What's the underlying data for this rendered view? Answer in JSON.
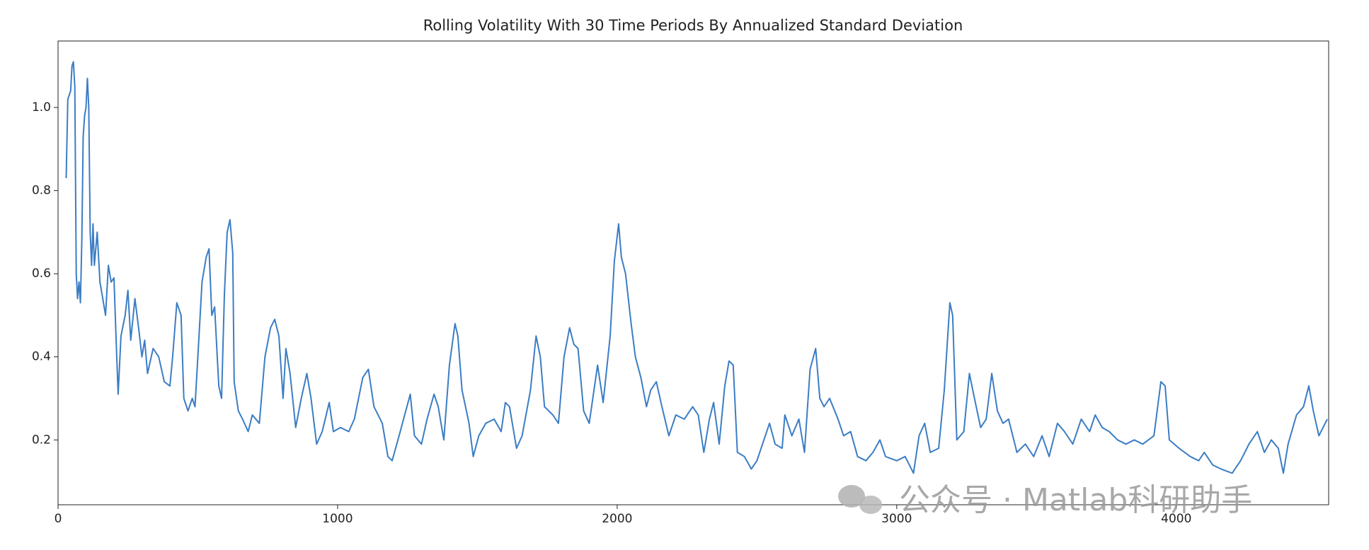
{
  "chart_data": {
    "type": "line",
    "title": "Rolling Volatility With 30 Time Periods By Annualized Standard Deviation",
    "watermark": "公众号 · Matlab科研助手",
    "color": "#3b7dc4",
    "xlim": [
      0,
      4545
    ],
    "xticks": [
      0,
      1000,
      2000,
      3000,
      4000
    ],
    "ylim": [
      0.044,
      1.16
    ],
    "yticks": [
      0.2,
      0.4,
      0.6,
      0.8,
      {
        "value": 1,
        "label": "1.0"
      }
    ],
    "grid": false,
    "x": [
      29,
      35,
      45,
      50,
      55,
      60,
      65,
      70,
      75,
      80,
      85,
      90,
      95,
      100,
      105,
      110,
      115,
      120,
      125,
      130,
      140,
      150,
      160,
      170,
      180,
      190,
      200,
      210,
      215,
      225,
      240,
      250,
      260,
      275,
      290,
      300,
      310,
      320,
      340,
      360,
      380,
      400,
      410,
      425,
      440,
      450,
      465,
      480,
      490,
      500,
      515,
      530,
      540,
      550,
      560,
      575,
      585,
      595,
      605,
      615,
      625,
      630,
      645,
      660,
      680,
      695,
      720,
      740,
      760,
      775,
      790,
      805,
      815,
      830,
      850,
      870,
      890,
      905,
      925,
      945,
      970,
      985,
      1010,
      1040,
      1060,
      1090,
      1110,
      1130,
      1160,
      1180,
      1195,
      1220,
      1240,
      1260,
      1275,
      1300,
      1320,
      1345,
      1360,
      1380,
      1400,
      1420,
      1430,
      1445,
      1470,
      1485,
      1505,
      1530,
      1560,
      1585,
      1600,
      1615,
      1640,
      1660,
      1690,
      1710,
      1725,
      1740,
      1770,
      1790,
      1810,
      1830,
      1845,
      1860,
      1880,
      1900,
      1930,
      1950,
      1975,
      1990,
      2005,
      2015,
      2030,
      2050,
      2065,
      2085,
      2105,
      2120,
      2140,
      2160,
      2185,
      2210,
      2240,
      2270,
      2290,
      2310,
      2330,
      2345,
      2365,
      2385,
      2400,
      2415,
      2430,
      2455,
      2480,
      2500,
      2525,
      2545,
      2565,
      2590,
      2600,
      2625,
      2650,
      2670,
      2690,
      2710,
      2725,
      2740,
      2760,
      2790,
      2810,
      2835,
      2860,
      2890,
      2915,
      2940,
      2960,
      3000,
      3030,
      3060,
      3080,
      3100,
      3120,
      3150,
      3170,
      3190,
      3200,
      3215,
      3240,
      3260,
      3275,
      3300,
      3320,
      3340,
      3360,
      3380,
      3400,
      3430,
      3460,
      3490,
      3520,
      3545,
      3575,
      3600,
      3630,
      3660,
      3690,
      3710,
      3735,
      3760,
      3790,
      3820,
      3850,
      3880,
      3920,
      3945,
      3960,
      3975,
      4010,
      4050,
      4080,
      4100,
      4130,
      4160,
      4200,
      4230,
      4260,
      4290,
      4315,
      4340,
      4365,
      4383,
      4400,
      4430,
      4455,
      4474,
      4490,
      4510,
      4525,
      4540
    ],
    "values": [
      0.83,
      1.02,
      1.04,
      1.1,
      1.11,
      1.05,
      0.6,
      0.54,
      0.58,
      0.53,
      0.68,
      0.93,
      0.98,
      1.0,
      1.07,
      1.0,
      0.7,
      0.62,
      0.72,
      0.62,
      0.7,
      0.58,
      0.54,
      0.5,
      0.62,
      0.58,
      0.59,
      0.4,
      0.31,
      0.45,
      0.5,
      0.56,
      0.44,
      0.54,
      0.46,
      0.4,
      0.44,
      0.36,
      0.42,
      0.4,
      0.34,
      0.33,
      0.4,
      0.53,
      0.5,
      0.3,
      0.27,
      0.3,
      0.28,
      0.4,
      0.58,
      0.64,
      0.66,
      0.5,
      0.52,
      0.33,
      0.3,
      0.55,
      0.7,
      0.73,
      0.65,
      0.34,
      0.27,
      0.25,
      0.22,
      0.26,
      0.24,
      0.4,
      0.47,
      0.49,
      0.45,
      0.3,
      0.42,
      0.36,
      0.23,
      0.3,
      0.36,
      0.3,
      0.19,
      0.22,
      0.29,
      0.22,
      0.23,
      0.22,
      0.25,
      0.35,
      0.37,
      0.28,
      0.24,
      0.16,
      0.15,
      0.21,
      0.26,
      0.31,
      0.21,
      0.19,
      0.25,
      0.31,
      0.28,
      0.2,
      0.38,
      0.48,
      0.45,
      0.32,
      0.24,
      0.16,
      0.21,
      0.24,
      0.25,
      0.22,
      0.29,
      0.28,
      0.18,
      0.21,
      0.32,
      0.45,
      0.4,
      0.28,
      0.26,
      0.24,
      0.4,
      0.47,
      0.43,
      0.42,
      0.27,
      0.24,
      0.38,
      0.29,
      0.45,
      0.63,
      0.72,
      0.64,
      0.6,
      0.48,
      0.4,
      0.35,
      0.28,
      0.32,
      0.34,
      0.28,
      0.21,
      0.26,
      0.25,
      0.28,
      0.26,
      0.17,
      0.25,
      0.29,
      0.19,
      0.33,
      0.39,
      0.38,
      0.17,
      0.16,
      0.13,
      0.15,
      0.2,
      0.24,
      0.19,
      0.18,
      0.26,
      0.21,
      0.25,
      0.17,
      0.37,
      0.42,
      0.3,
      0.28,
      0.3,
      0.25,
      0.21,
      0.22,
      0.16,
      0.15,
      0.17,
      0.2,
      0.16,
      0.15,
      0.16,
      0.12,
      0.21,
      0.24,
      0.17,
      0.18,
      0.32,
      0.53,
      0.5,
      0.2,
      0.22,
      0.36,
      0.31,
      0.23,
      0.25,
      0.36,
      0.27,
      0.24,
      0.25,
      0.17,
      0.19,
      0.16,
      0.21,
      0.16,
      0.24,
      0.22,
      0.19,
      0.25,
      0.22,
      0.26,
      0.23,
      0.22,
      0.2,
      0.19,
      0.2,
      0.19,
      0.21,
      0.34,
      0.33,
      0.2,
      0.18,
      0.16,
      0.15,
      0.17,
      0.14,
      0.13,
      0.12,
      0.15,
      0.19,
      0.22,
      0.17,
      0.2,
      0.18,
      0.12,
      0.19,
      0.26,
      0.28,
      0.33,
      0.27,
      0.21,
      0.23,
      0.25
    ]
  }
}
